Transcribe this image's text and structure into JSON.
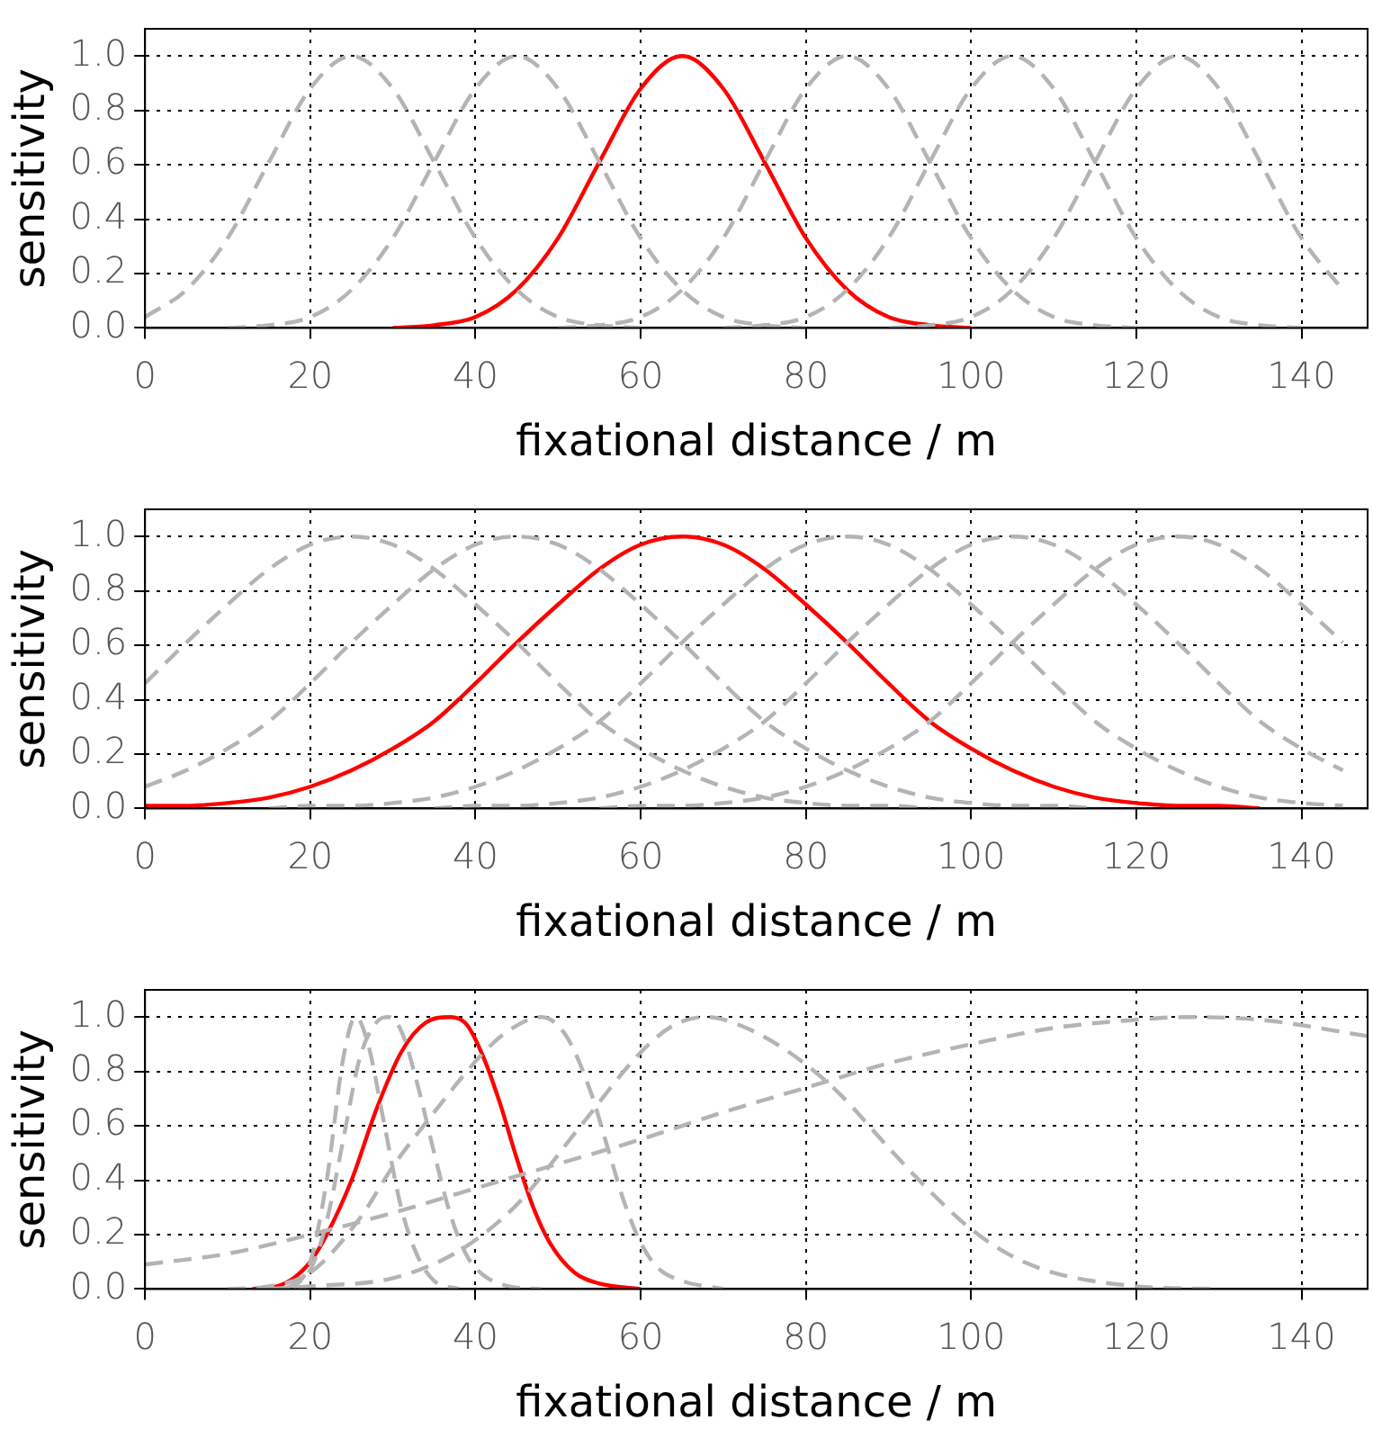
{
  "chart_data": [
    {
      "type": "line",
      "xlabel": "fixational distance / m",
      "ylabel": "sensitivity",
      "xlim": [
        0,
        148
      ],
      "ylim": [
        0,
        1.1
      ],
      "xticks": [
        0,
        20,
        40,
        60,
        80,
        100,
        120,
        140
      ],
      "yticks": [
        {
          "value": 0,
          "label": "0.0"
        },
        {
          "value": 0.2,
          "label": "0.2"
        },
        {
          "value": 0.4,
          "label": "0.4"
        },
        {
          "value": 0.6,
          "label": "0.6"
        },
        {
          "value": 0.8,
          "label": "0.8"
        },
        {
          "value": 1,
          "label": "1.0"
        }
      ],
      "grid": true,
      "legend": false,
      "marker": "none",
      "x": [
        0,
        5,
        10,
        15,
        20,
        25,
        30,
        35,
        40,
        45,
        50,
        55,
        60,
        65,
        70,
        75,
        80,
        85,
        90,
        95,
        100,
        105,
        110,
        115,
        120,
        125,
        130,
        135,
        140,
        145
      ],
      "series": [
        {
          "color": "#b4b4b4",
          "line_style": "dashed",
          "values": [
            0.04,
            0.14,
            0.33,
            0.61,
            0.88,
            1,
            0.88,
            0.61,
            0.33,
            0.14,
            0.04,
            0.01,
            0,
            null,
            null,
            null,
            null,
            null,
            null,
            null,
            null,
            null,
            null,
            null,
            null,
            null,
            null,
            null,
            null,
            null
          ]
        },
        {
          "color": "#b4b4b4",
          "line_style": "dashed",
          "values": [
            null,
            null,
            0,
            0.01,
            0.04,
            0.14,
            0.33,
            0.61,
            0.88,
            1,
            0.88,
            0.61,
            0.33,
            0.14,
            0.04,
            0.01,
            0,
            null,
            null,
            null,
            null,
            null,
            null,
            null,
            null,
            null,
            null,
            null,
            null,
            null
          ]
        },
        {
          "color": "#b4b4b4",
          "line_style": "dashed",
          "values": [
            null,
            null,
            null,
            null,
            null,
            null,
            null,
            null,
            null,
            null,
            0,
            0.01,
            0.04,
            0.14,
            0.33,
            0.61,
            0.88,
            1,
            0.88,
            0.61,
            0.33,
            0.14,
            0.04,
            0.01,
            0,
            null,
            null,
            null,
            null,
            null
          ]
        },
        {
          "color": "#b4b4b4",
          "line_style": "dashed",
          "values": [
            null,
            null,
            null,
            null,
            null,
            null,
            null,
            null,
            null,
            null,
            null,
            null,
            null,
            null,
            0,
            0.01,
            0.04,
            0.14,
            0.33,
            0.61,
            0.88,
            1,
            0.88,
            0.61,
            0.33,
            0.14,
            0.04,
            0.01,
            0,
            null
          ]
        },
        {
          "color": "#b4b4b4",
          "line_style": "dashed",
          "values": [
            null,
            null,
            null,
            null,
            null,
            null,
            null,
            null,
            null,
            null,
            null,
            null,
            null,
            null,
            null,
            null,
            null,
            null,
            0,
            0.01,
            0.04,
            0.14,
            0.33,
            0.61,
            0.88,
            1,
            0.88,
            0.61,
            0.33,
            0.14
          ]
        },
        {
          "color": "#ff0000",
          "line_style": "solid",
          "values": [
            null,
            null,
            null,
            null,
            null,
            null,
            0,
            0.01,
            0.04,
            0.14,
            0.33,
            0.61,
            0.88,
            1,
            0.88,
            0.61,
            0.33,
            0.14,
            0.04,
            0.01,
            0,
            null,
            null,
            null,
            null,
            null,
            null,
            null,
            null,
            null
          ]
        }
      ]
    },
    {
      "type": "line",
      "xlabel": "fixational distance / m",
      "ylabel": "sensitivity",
      "xlim": [
        0,
        148
      ],
      "ylim": [
        0,
        1.1
      ],
      "xticks": [
        0,
        20,
        40,
        60,
        80,
        100,
        120,
        140
      ],
      "yticks": [
        {
          "value": 0,
          "label": "0.0"
        },
        {
          "value": 0.2,
          "label": "0.2"
        },
        {
          "value": 0.4,
          "label": "0.4"
        },
        {
          "value": 0.6,
          "label": "0.6"
        },
        {
          "value": 0.8,
          "label": "0.8"
        },
        {
          "value": 1,
          "label": "1.0"
        }
      ],
      "grid": true,
      "legend": false,
      "marker": "none",
      "x": [
        0,
        5,
        10,
        15,
        20,
        25,
        30,
        35,
        40,
        45,
        50,
        55,
        60,
        65,
        70,
        75,
        80,
        85,
        90,
        95,
        100,
        105,
        110,
        115,
        120,
        125,
        130,
        135,
        140,
        145
      ],
      "series": [
        {
          "color": "#b4b4b4",
          "line_style": "dashed",
          "values": [
            0.46,
            0.61,
            0.75,
            0.88,
            0.97,
            1,
            0.97,
            0.88,
            0.75,
            0.61,
            0.46,
            0.32,
            0.22,
            0.14,
            0.08,
            0.04,
            0.02,
            0.01,
            0.01,
            0,
            null,
            null,
            null,
            null,
            null,
            null,
            null,
            null,
            null,
            null
          ]
        },
        {
          "color": "#b4b4b4",
          "line_style": "dashed",
          "values": [
            0.08,
            0.14,
            0.22,
            0.32,
            0.46,
            0.61,
            0.75,
            0.88,
            0.97,
            1,
            0.97,
            0.88,
            0.75,
            0.61,
            0.46,
            0.32,
            0.22,
            0.14,
            0.08,
            0.04,
            0.02,
            0.01,
            0.01,
            0,
            null,
            null,
            null,
            null,
            null,
            null
          ]
        },
        {
          "color": "#b4b4b4",
          "line_style": "dashed",
          "values": [
            null,
            null,
            null,
            0,
            0.01,
            0.01,
            0.02,
            0.04,
            0.08,
            0.14,
            0.22,
            0.32,
            0.46,
            0.61,
            0.75,
            0.88,
            0.97,
            1,
            0.97,
            0.88,
            0.75,
            0.61,
            0.46,
            0.32,
            0.22,
            0.14,
            0.08,
            0.04,
            0.02,
            0.01
          ]
        },
        {
          "color": "#b4b4b4",
          "line_style": "dashed",
          "values": [
            null,
            null,
            null,
            null,
            null,
            null,
            null,
            0,
            0.01,
            0.01,
            0.02,
            0.04,
            0.08,
            0.14,
            0.22,
            0.32,
            0.46,
            0.61,
            0.75,
            0.88,
            0.97,
            1,
            0.97,
            0.88,
            0.75,
            0.61,
            0.46,
            0.32,
            0.22,
            0.14
          ]
        },
        {
          "color": "#b4b4b4",
          "line_style": "dashed",
          "values": [
            null,
            null,
            null,
            null,
            null,
            null,
            null,
            null,
            null,
            null,
            null,
            0,
            0.01,
            0.01,
            0.02,
            0.04,
            0.08,
            0.14,
            0.22,
            0.32,
            0.46,
            0.61,
            0.75,
            0.88,
            0.97,
            1,
            0.97,
            0.88,
            0.75,
            0.61
          ]
        },
        {
          "color": "#ff0000",
          "line_style": "solid",
          "values": [
            0.01,
            0.01,
            0.02,
            0.04,
            0.08,
            0.14,
            0.22,
            0.32,
            0.46,
            0.61,
            0.75,
            0.88,
            0.97,
            1,
            0.97,
            0.88,
            0.75,
            0.61,
            0.46,
            0.32,
            0.22,
            0.14,
            0.08,
            0.04,
            0.02,
            0.01,
            0.01,
            0,
            null,
            null
          ]
        }
      ]
    },
    {
      "type": "line",
      "xlabel": "fixational distance / m",
      "ylabel": "sensitivity",
      "xlim": [
        0,
        148
      ],
      "ylim": [
        0,
        1.1
      ],
      "xticks": [
        0,
        20,
        40,
        60,
        80,
        100,
        120,
        140
      ],
      "yticks": [
        {
          "value": 0,
          "label": "0.0"
        },
        {
          "value": 0.2,
          "label": "0.2"
        },
        {
          "value": 0.4,
          "label": "0.4"
        },
        {
          "value": 0.6,
          "label": "0.6"
        },
        {
          "value": 0.8,
          "label": "0.8"
        },
        {
          "value": 1,
          "label": "1.0"
        }
      ],
      "grid": true,
      "legend": false,
      "marker": "none",
      "series": [
        {
          "color": "#b4b4b4",
          "line_style": "dashed",
          "x": [
            18,
            20,
            22,
            24,
            25.5,
            27,
            29,
            31,
            33,
            35,
            38
          ],
          "values": [
            0,
            0.1,
            0.4,
            0.85,
            1,
            0.9,
            0.6,
            0.3,
            0.12,
            0.03,
            0
          ]
        },
        {
          "color": "#b4b4b4",
          "line_style": "dashed",
          "x": [
            17,
            20,
            22,
            24,
            26,
            28,
            29.5,
            31,
            33,
            35,
            37,
            39,
            41,
            44,
            48
          ],
          "values": [
            0,
            0.07,
            0.25,
            0.55,
            0.85,
            0.98,
            1,
            0.95,
            0.75,
            0.5,
            0.27,
            0.12,
            0.05,
            0.01,
            0
          ]
        },
        {
          "color": "#b4b4b4",
          "line_style": "dashed",
          "x": [
            10,
            15,
            20,
            26,
            30,
            35,
            41,
            44,
            48,
            51,
            54,
            56,
            58,
            60,
            62,
            65,
            70
          ],
          "values": [
            0,
            0.01,
            0.06,
            0.26,
            0.45,
            0.65,
            0.87,
            0.95,
            1,
            0.93,
            0.72,
            0.52,
            0.32,
            0.17,
            0.08,
            0.03,
            0
          ]
        },
        {
          "color": "#b4b4b4",
          "line_style": "dashed",
          "x": [
            15,
            20,
            30,
            38,
            45,
            53,
            60,
            64,
            68,
            72,
            78,
            84,
            90,
            95,
            100,
            105,
            110,
            120,
            130
          ],
          "values": [
            0,
            0.01,
            0.04,
            0.14,
            0.31,
            0.61,
            0.87,
            0.97,
            1,
            0.97,
            0.87,
            0.72,
            0.52,
            0.36,
            0.22,
            0.12,
            0.06,
            0.01,
            0
          ]
        },
        {
          "color": "#b4b4b4",
          "line_style": "dashed",
          "x": [
            0,
            10,
            20,
            30,
            40,
            50,
            60,
            70,
            80,
            90,
            100,
            110,
            120,
            126,
            135,
            148
          ],
          "values": [
            0.09,
            0.13,
            0.2,
            0.28,
            0.37,
            0.46,
            0.55,
            0.65,
            0.74,
            0.83,
            0.9,
            0.96,
            0.99,
            1,
            0.99,
            0.93
          ]
        },
        {
          "color": "#ff0000",
          "line_style": "solid",
          "x": [
            13,
            16,
            18,
            20,
            22,
            25,
            28,
            31,
            34,
            37,
            39,
            41,
            43,
            45,
            47,
            49,
            52,
            55,
            60
          ],
          "values": [
            0,
            0.01,
            0.04,
            0.1,
            0.2,
            0.4,
            0.66,
            0.87,
            0.98,
            1,
            0.97,
            0.85,
            0.68,
            0.48,
            0.3,
            0.17,
            0.06,
            0.02,
            0
          ]
        }
      ]
    }
  ]
}
